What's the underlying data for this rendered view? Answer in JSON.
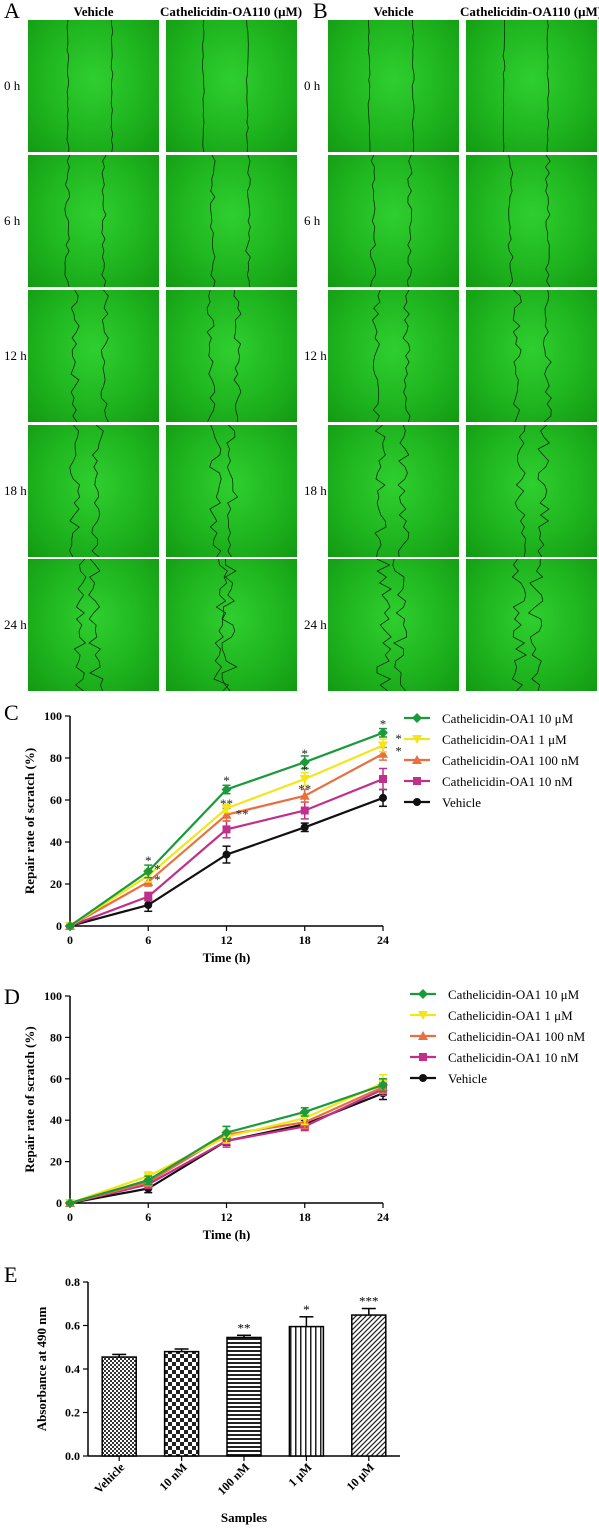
{
  "panels": {
    "A": {
      "letter": "A",
      "col_headers": [
        "Vehicle",
        "Cathelicidin-OA110 (μM)"
      ],
      "row_labels": [
        "0 h",
        "6 h",
        "12 h",
        "18 h",
        "24 h"
      ]
    },
    "B": {
      "letter": "B",
      "col_headers": [
        "Vehicle",
        "Cathelicidin-OA110 (μM)"
      ],
      "row_labels": [
        "0 h",
        "6 h",
        "12 h",
        "18 h",
        "24 h"
      ]
    }
  },
  "chart_data": [
    {
      "panel": "C",
      "type": "line",
      "xlabel": "Time (h)",
      "ylabel": "Repair rate of scratch (%)",
      "x": [
        0,
        6,
        12,
        18,
        24
      ],
      "xlim": [
        0,
        24
      ],
      "ylim": [
        0,
        100
      ],
      "yticks": [
        0,
        20,
        40,
        60,
        80,
        100
      ],
      "legend_position": "top-right",
      "series": [
        {
          "name": "Cathelicidin-OA1 10 μM",
          "color": "#1a9a3a",
          "marker": "diamond",
          "values": [
            0,
            26,
            65,
            78,
            92
          ],
          "err": [
            0,
            3,
            2,
            3,
            2
          ]
        },
        {
          "name": "Cathelicidin-OA1 1 μM",
          "color": "#f2e61a",
          "marker": "triangle-down",
          "values": [
            0,
            24,
            56,
            70,
            86
          ],
          "err": [
            0,
            3,
            2,
            3,
            3
          ]
        },
        {
          "name": "Cathelicidin-OA1 100 nM",
          "color": "#e87040",
          "marker": "triangle-up",
          "values": [
            0,
            21,
            53,
            62,
            82
          ],
          "err": [
            0,
            2,
            3,
            3,
            3
          ]
        },
        {
          "name": "Cathelicidin-OA1 10 nM",
          "color": "#c0308a",
          "marker": "square",
          "values": [
            0,
            14,
            46,
            55,
            70
          ],
          "err": [
            0,
            2,
            4,
            4,
            5
          ]
        },
        {
          "name": "Vehicle",
          "color": "#111111",
          "marker": "circle",
          "values": [
            0,
            10,
            34,
            47,
            61
          ],
          "err": [
            0,
            3,
            4,
            2,
            4
          ]
        }
      ],
      "annotations": [
        {
          "x": 6,
          "y": 31,
          "text": "*"
        },
        {
          "x": 6.7,
          "y": 27,
          "text": "*"
        },
        {
          "x": 6.7,
          "y": 22,
          "text": "*"
        },
        {
          "x": 12,
          "y": 69,
          "text": "*"
        },
        {
          "x": 12,
          "y": 58,
          "text": "**"
        },
        {
          "x": 13.2,
          "y": 53,
          "text": "**"
        },
        {
          "x": 18,
          "y": 82,
          "text": "*"
        },
        {
          "x": 18,
          "y": 74,
          "text": "*"
        },
        {
          "x": 18,
          "y": 65,
          "text": "**"
        },
        {
          "x": 24,
          "y": 96,
          "text": "*"
        },
        {
          "x": 25.2,
          "y": 89,
          "text": "*"
        },
        {
          "x": 25.2,
          "y": 83,
          "text": "*"
        }
      ]
    },
    {
      "panel": "D",
      "type": "line",
      "xlabel": "Time (h)",
      "ylabel": "Repair rate of scratch (%)",
      "x": [
        0,
        6,
        12,
        18,
        24
      ],
      "xlim": [
        0,
        24
      ],
      "ylim": [
        0,
        100
      ],
      "yticks": [
        0,
        20,
        40,
        60,
        80,
        100
      ],
      "legend_position": "top-right",
      "series": [
        {
          "name": "Cathelicidin-OA1 10 μM",
          "color": "#1a9a3a",
          "marker": "diamond",
          "values": [
            0,
            11,
            34,
            44,
            57
          ],
          "err": [
            0,
            2,
            3,
            2,
            3
          ]
        },
        {
          "name": "Cathelicidin-OA1 1 μM",
          "color": "#f2e61a",
          "marker": "triangle-down",
          "values": [
            0,
            13,
            32,
            41,
            58
          ],
          "err": [
            0,
            2,
            3,
            3,
            4
          ]
        },
        {
          "name": "Cathelicidin-OA1 100 nM",
          "color": "#e87040",
          "marker": "triangle-up",
          "values": [
            0,
            10,
            33,
            39,
            56
          ],
          "err": [
            0,
            2,
            4,
            3,
            3
          ]
        },
        {
          "name": "Cathelicidin-OA1 10 nM",
          "color": "#c0308a",
          "marker": "square",
          "values": [
            0,
            9,
            30,
            37,
            55
          ],
          "err": [
            0,
            2,
            3,
            2,
            3
          ]
        },
        {
          "name": "Vehicle",
          "color": "#111111",
          "marker": "circle",
          "values": [
            0,
            7,
            30,
            38,
            53
          ],
          "err": [
            0,
            2,
            2,
            2,
            3
          ]
        }
      ],
      "annotations": []
    },
    {
      "panel": "E",
      "type": "bar",
      "xlabel": "Samples",
      "ylabel": "Absorbance at 490 nm",
      "categories": [
        "Vehicle",
        "10 nM",
        "100 nM",
        "1 μM",
        "10 μM"
      ],
      "values": [
        0.455,
        0.48,
        0.545,
        0.595,
        0.648
      ],
      "err": [
        0.012,
        0.012,
        0.01,
        0.045,
        0.03
      ],
      "patterns": [
        "checker-small",
        "checker-large",
        "horizontal",
        "vertical",
        "diagonal"
      ],
      "sig": [
        "",
        "",
        "**",
        "*",
        "***"
      ],
      "ylim": [
        0,
        0.8
      ],
      "yticks": [
        "0.0",
        "0.2",
        "0.4",
        "0.6",
        "0.8"
      ]
    }
  ]
}
